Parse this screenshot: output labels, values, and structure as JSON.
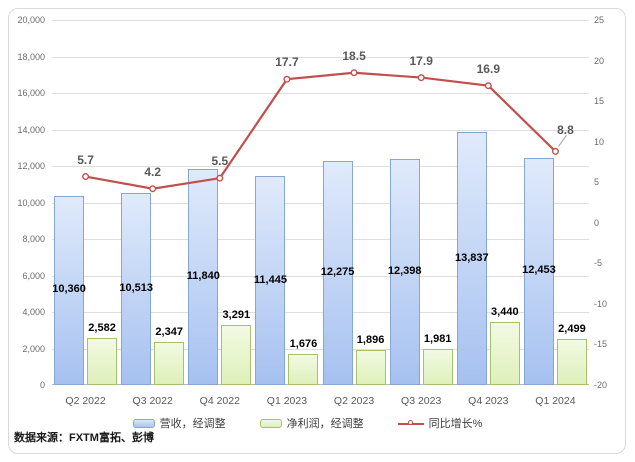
{
  "chart_data": {
    "type": "combo",
    "categories": [
      "Q2 2022",
      "Q3 2022",
      "Q4 2022",
      "Q1 2023",
      "Q2 2023",
      "Q3 2023",
      "Q4 2023",
      "Q1 2024"
    ],
    "series": [
      {
        "name": "营收，经调整",
        "type": "bar",
        "axis": "left",
        "values": [
          10360,
          10513,
          11840,
          11445,
          12275,
          12398,
          13837,
          12453
        ],
        "color_top": "#e0eafb",
        "color_bottom": "#a6c1f0",
        "border_color": "#84a7d6"
      },
      {
        "name": "净利润，经调整",
        "type": "bar",
        "axis": "left",
        "values": [
          2582,
          2347,
          3291,
          1676,
          1896,
          1981,
          3440,
          2499
        ],
        "color_top": "#f2fae3",
        "color_bottom": "#def0ba",
        "border_color": "#a7c16b"
      },
      {
        "name": "同比增长%",
        "type": "line",
        "axis": "right",
        "values": [
          5.7,
          4.2,
          5.5,
          17.7,
          18.5,
          17.9,
          16.9,
          8.8
        ],
        "color": "#c0504d",
        "marker": "open-circle"
      }
    ],
    "left_axis": {
      "min": 0,
      "max": 20000,
      "step": 2000,
      "tick_labels": [
        "0",
        "2,000",
        "4,000",
        "6,000",
        "8,000",
        "10,000",
        "12,000",
        "14,000",
        "16,000",
        "18,000",
        "20,000"
      ]
    },
    "right_axis": {
      "min": -20,
      "max": 25,
      "step": 5,
      "tick_labels": [
        "-20",
        "-15",
        "-10",
        "-5",
        "0",
        "5",
        "10",
        "15",
        "20",
        "25"
      ]
    },
    "grid": true,
    "legend_position": "bottom",
    "title": "",
    "label_colors": {
      "bar_label": "#000000",
      "line_label": "#595959"
    },
    "gridline_color": "#dedede"
  },
  "footer": {
    "source_label": "数据来源：FXTM富拓、彭博"
  }
}
